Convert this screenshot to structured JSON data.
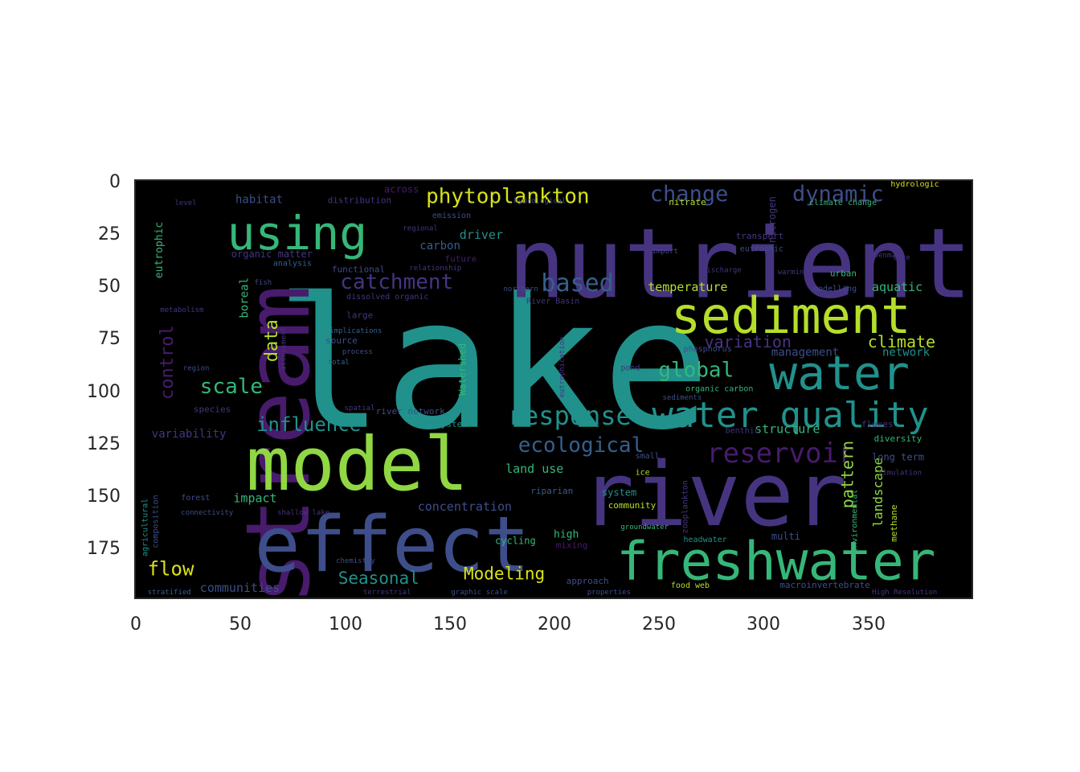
{
  "axes": {
    "x_ticks": [
      "0",
      "50",
      "100",
      "150",
      "200",
      "250",
      "300",
      "350"
    ],
    "y_ticks": [
      "0",
      "25",
      "50",
      "75",
      "100",
      "125",
      "150",
      "175"
    ],
    "xlim": [
      0,
      400
    ],
    "ylim": [
      0,
      200
    ],
    "y_inverted": true,
    "background": "#000000",
    "frame_color": "#262626"
  },
  "palette": {
    "purple": "#481b6d",
    "indigo": "#463480",
    "blue": "#3d4e8a",
    "steel": "#355f8d",
    "teal": "#21918c",
    "green": "#35b779",
    "lime": "#90d743",
    "yellowgreen": "#b5de2b",
    "yellow": "#d8e219"
  },
  "words": [
    {
      "text": "lake",
      "x": 67,
      "y": 118,
      "size": 225,
      "color": "teal",
      "rot": 0
    },
    {
      "text": "stream",
      "x": 83,
      "y": 203,
      "size": 110,
      "color": "purple",
      "rot": -90
    },
    {
      "text": "nutrient",
      "x": 178,
      "y": 56,
      "size": 120,
      "color": "indigo",
      "rot": 0
    },
    {
      "text": "river",
      "x": 213,
      "y": 165,
      "size": 110,
      "color": "indigo",
      "rot": 0
    },
    {
      "text": "effect",
      "x": 57,
      "y": 187,
      "size": 95,
      "color": "blue",
      "rot": 0
    },
    {
      "text": "model",
      "x": 53,
      "y": 148,
      "size": 92,
      "color": "lime",
      "rot": 0
    },
    {
      "text": "using",
      "x": 44,
      "y": 33,
      "size": 58,
      "color": "green",
      "rot": 0
    },
    {
      "text": "sediment",
      "x": 256,
      "y": 73,
      "size": 62,
      "color": "yellowgreen",
      "rot": 0
    },
    {
      "text": "water",
      "x": 303,
      "y": 100,
      "size": 58,
      "color": "teal",
      "rot": 0
    },
    {
      "text": "freshwater",
      "x": 230,
      "y": 191,
      "size": 66,
      "color": "green",
      "rot": 0
    },
    {
      "text": "water quality",
      "x": 247,
      "y": 118,
      "size": 44,
      "color": "teal",
      "rot": 0
    },
    {
      "text": "response",
      "x": 178,
      "y": 117,
      "size": 32,
      "color": "teal",
      "rot": 0
    },
    {
      "text": "reservoir",
      "x": 273,
      "y": 135,
      "size": 34,
      "color": "purple",
      "rot": 0
    },
    {
      "text": "phytoplankton",
      "x": 139,
      "y": 11,
      "size": 26,
      "color": "yellow",
      "rot": 0
    },
    {
      "text": "change",
      "x": 246,
      "y": 10,
      "size": 27,
      "color": "blue",
      "rot": 0
    },
    {
      "text": "dynamic",
      "x": 314,
      "y": 10,
      "size": 27,
      "color": "blue",
      "rot": 0
    },
    {
      "text": "catchment",
      "x": 98,
      "y": 52,
      "size": 26,
      "color": "indigo",
      "rot": 0
    },
    {
      "text": "based",
      "x": 194,
      "y": 53,
      "size": 30,
      "color": "steel",
      "rot": 0
    },
    {
      "text": "ecological",
      "x": 183,
      "y": 130,
      "size": 26,
      "color": "steel",
      "rot": 0
    },
    {
      "text": "global",
      "x": 250,
      "y": 94,
      "size": 26,
      "color": "green",
      "rot": 0
    },
    {
      "text": "influence",
      "x": 58,
      "y": 120,
      "size": 24,
      "color": "teal",
      "rot": 0
    },
    {
      "text": "scale",
      "x": 31,
      "y": 102,
      "size": 26,
      "color": "green",
      "rot": 0
    },
    {
      "text": "data",
      "x": 68,
      "y": 87,
      "size": 22,
      "color": "yellowgreen",
      "rot": -90
    },
    {
      "text": "control",
      "x": 18,
      "y": 105,
      "size": 22,
      "color": "purple",
      "rot": -90
    },
    {
      "text": "variation",
      "x": 272,
      "y": 80,
      "size": 20,
      "color": "indigo",
      "rot": 0
    },
    {
      "text": "climate",
      "x": 350,
      "y": 80,
      "size": 20,
      "color": "yellowgreen",
      "rot": 0
    },
    {
      "text": "temperature",
      "x": 245,
      "y": 53,
      "size": 15,
      "color": "yellowgreen",
      "rot": 0
    },
    {
      "text": "aquatic",
      "x": 352,
      "y": 53,
      "size": 15,
      "color": "green",
      "rot": 0
    },
    {
      "text": "flow",
      "x": 6,
      "y": 189,
      "size": 24,
      "color": "yellow",
      "rot": 0
    },
    {
      "text": "Seasonal",
      "x": 97,
      "y": 193,
      "size": 21,
      "color": "teal",
      "rot": 0
    },
    {
      "text": "Modeling",
      "x": 157,
      "y": 191,
      "size": 21,
      "color": "yellow",
      "rot": 0
    },
    {
      "text": "communities",
      "x": 31,
      "y": 197,
      "size": 15,
      "color": "blue",
      "rot": 0
    },
    {
      "text": "concentration",
      "x": 135,
      "y": 158,
      "size": 15,
      "color": "blue",
      "rot": 0
    },
    {
      "text": "land use",
      "x": 177,
      "y": 140,
      "size": 15,
      "color": "green",
      "rot": 0
    },
    {
      "text": "pattern",
      "x": 343,
      "y": 157,
      "size": 20,
      "color": "lime",
      "rot": -90
    },
    {
      "text": "landscape",
      "x": 357,
      "y": 166,
      "size": 16,
      "color": "lime",
      "rot": -90
    },
    {
      "text": "structure",
      "x": 296,
      "y": 121,
      "size": 15,
      "color": "green",
      "rot": 0
    },
    {
      "text": "network",
      "x": 357,
      "y": 84,
      "size": 14,
      "color": "teal",
      "rot": 0
    },
    {
      "text": "management",
      "x": 304,
      "y": 84,
      "size": 14,
      "color": "blue",
      "rot": 0
    },
    {
      "text": "driver",
      "x": 155,
      "y": 28,
      "size": 15,
      "color": "teal",
      "rot": 0
    },
    {
      "text": "carbon",
      "x": 136,
      "y": 33,
      "size": 14,
      "color": "steel",
      "rot": 0
    },
    {
      "text": "habitat",
      "x": 48,
      "y": 11,
      "size": 14,
      "color": "blue",
      "rot": 0
    },
    {
      "text": "across",
      "x": 119,
      "y": 6,
      "size": 12,
      "color": "purple",
      "rot": 0
    },
    {
      "text": "distribution",
      "x": 92,
      "y": 11,
      "size": 11,
      "color": "indigo",
      "rot": 0
    },
    {
      "text": "emission",
      "x": 142,
      "y": 18,
      "size": 10,
      "color": "blue",
      "rot": 0
    },
    {
      "text": "organic matter",
      "x": 46,
      "y": 37,
      "size": 12,
      "color": "indigo",
      "rot": 0
    },
    {
      "text": "future",
      "x": 148,
      "y": 39,
      "size": 11,
      "color": "purple",
      "rot": 0
    },
    {
      "text": "functional",
      "x": 94,
      "y": 44,
      "size": 11,
      "color": "blue",
      "rot": 0
    },
    {
      "text": "analysis",
      "x": 66,
      "y": 41,
      "size": 10,
      "color": "steel",
      "rot": 0
    },
    {
      "text": "eutrophic",
      "x": 13,
      "y": 47,
      "size": 13,
      "color": "green",
      "rot": -90
    },
    {
      "text": "boreal",
      "x": 54,
      "y": 66,
      "size": 14,
      "color": "green",
      "rot": -90
    },
    {
      "text": "variability",
      "x": 8,
      "y": 123,
      "size": 14,
      "color": "indigo",
      "rot": 0
    },
    {
      "text": "species",
      "x": 28,
      "y": 111,
      "size": 11,
      "color": "indigo",
      "rot": 0
    },
    {
      "text": "impact",
      "x": 47,
      "y": 154,
      "size": 15,
      "color": "green",
      "rot": 0
    },
    {
      "text": "forest",
      "x": 22,
      "y": 153,
      "size": 10,
      "color": "blue",
      "rot": 0
    },
    {
      "text": "Watershed",
      "x": 158,
      "y": 103,
      "size": 12,
      "color": "green",
      "rot": -90
    },
    {
      "text": "river network",
      "x": 115,
      "y": 112,
      "size": 11,
      "color": "blue",
      "rot": 0
    },
    {
      "text": "ecosystem",
      "x": 136,
      "y": 118,
      "size": 11,
      "color": "teal",
      "rot": 0
    },
    {
      "text": "riparian",
      "x": 189,
      "y": 150,
      "size": 11,
      "color": "steel",
      "rot": 0
    },
    {
      "text": "high",
      "x": 200,
      "y": 171,
      "size": 13,
      "color": "green",
      "rot": 0
    },
    {
      "text": "cycling",
      "x": 172,
      "y": 174,
      "size": 12,
      "color": "green",
      "rot": 0
    },
    {
      "text": "mixing",
      "x": 201,
      "y": 176,
      "size": 11,
      "color": "purple",
      "rot": 0
    },
    {
      "text": "system",
      "x": 223,
      "y": 151,
      "size": 12,
      "color": "teal",
      "rot": 0
    },
    {
      "text": "community",
      "x": 226,
      "y": 157,
      "size": 11,
      "color": "yellowgreen",
      "rot": 0
    },
    {
      "text": "long term",
      "x": 352,
      "y": 134,
      "size": 12,
      "color": "blue",
      "rot": 0
    },
    {
      "text": "diversity",
      "x": 353,
      "y": 125,
      "size": 11,
      "color": "green",
      "rot": 0
    },
    {
      "text": "fluxes",
      "x": 347,
      "y": 118,
      "size": 11,
      "color": "indigo",
      "rot": 0
    },
    {
      "text": "benthic",
      "x": 282,
      "y": 121,
      "size": 10,
      "color": "indigo",
      "rot": 0
    },
    {
      "text": "nitrate",
      "x": 255,
      "y": 12,
      "size": 11,
      "color": "yellowgreen",
      "rot": 0
    },
    {
      "text": "nitrogen",
      "x": 306,
      "y": 30,
      "size": 12,
      "color": "indigo",
      "rot": -90
    },
    {
      "text": "climate change",
      "x": 322,
      "y": 12,
      "size": 10,
      "color": "green",
      "rot": 0
    },
    {
      "text": "transport",
      "x": 287,
      "y": 28,
      "size": 11,
      "color": "indigo",
      "rot": 0
    },
    {
      "text": "eutrophic",
      "x": 289,
      "y": 34,
      "size": 10,
      "color": "blue",
      "rot": 0
    },
    {
      "text": "urban",
      "x": 332,
      "y": 46,
      "size": 11,
      "color": "green",
      "rot": 0
    },
    {
      "text": "modelling",
      "x": 324,
      "y": 53,
      "size": 10,
      "color": "blue",
      "rot": 0
    },
    {
      "text": "phosphorus",
      "x": 262,
      "y": 82,
      "size": 10,
      "color": "blue",
      "rot": 0
    },
    {
      "text": "organic carbon",
      "x": 263,
      "y": 101,
      "size": 10,
      "color": "green",
      "rot": 0
    },
    {
      "text": "dissolved organic",
      "x": 101,
      "y": 57,
      "size": 10,
      "color": "indigo",
      "rot": 0
    },
    {
      "text": "River Basin",
      "x": 187,
      "y": 59,
      "size": 10,
      "color": "indigo",
      "rot": 0
    },
    {
      "text": "large",
      "x": 101,
      "y": 66,
      "size": 11,
      "color": "indigo",
      "rot": 0
    },
    {
      "text": "source",
      "x": 91,
      "y": 78,
      "size": 11,
      "color": "blue",
      "rot": 0
    },
    {
      "text": "implications",
      "x": 93,
      "y": 73,
      "size": 9,
      "color": "steel",
      "rot": 0
    },
    {
      "text": "hydrologic",
      "x": 361,
      "y": 3,
      "size": 10,
      "color": "yellow",
      "rot": 0
    },
    {
      "text": "hydrological",
      "x": 181,
      "y": 11,
      "size": 9,
      "color": "blue",
      "rot": 0
    },
    {
      "text": "environmental",
      "x": 345,
      "y": 178,
      "size": 10,
      "color": "green",
      "rot": -90
    },
    {
      "text": "methane",
      "x": 364,
      "y": 173,
      "size": 11,
      "color": "yellowgreen",
      "rot": -90
    },
    {
      "text": "macroinvertebrate",
      "x": 308,
      "y": 195,
      "size": 11,
      "color": "blue",
      "rot": 0
    },
    {
      "text": "food web",
      "x": 256,
      "y": 195,
      "size": 10,
      "color": "yellowgreen",
      "rot": 0
    },
    {
      "text": "multi",
      "x": 304,
      "y": 172,
      "size": 12,
      "color": "blue",
      "rot": 0
    },
    {
      "text": "headwater",
      "x": 262,
      "y": 173,
      "size": 10,
      "color": "teal",
      "rot": 0
    },
    {
      "text": "approach",
      "x": 206,
      "y": 193,
      "size": 11,
      "color": "blue",
      "rot": 0
    },
    {
      "text": "zooplankton",
      "x": 264,
      "y": 169,
      "size": 10,
      "color": "indigo",
      "rot": -90
    },
    {
      "text": "agricultural",
      "x": 6,
      "y": 180,
      "size": 10,
      "color": "teal",
      "rot": -90
    },
    {
      "text": "composition",
      "x": 11,
      "y": 176,
      "size": 10,
      "color": "blue",
      "rot": -90
    },
    {
      "text": "pond",
      "x": 232,
      "y": 91,
      "size": 10,
      "color": "indigo",
      "rot": 0
    },
    {
      "text": "ice",
      "x": 239,
      "y": 141,
      "size": 10,
      "color": "yellowgreen",
      "rot": 0
    },
    {
      "text": "small",
      "x": 239,
      "y": 133,
      "size": 10,
      "color": "blue",
      "rot": 0
    },
    {
      "text": "eutrophication",
      "x": 205,
      "y": 104,
      "size": 9,
      "color": "indigo",
      "rot": -90
    },
    {
      "text": "total",
      "x": 92,
      "y": 88,
      "size": 9,
      "color": "steel",
      "rot": 0
    },
    {
      "text": "shallow lake",
      "x": 68,
      "y": 160,
      "size": 9,
      "color": "indigo",
      "rot": 0
    },
    {
      "text": "chemistry",
      "x": 96,
      "y": 183,
      "size": 9,
      "color": "blue",
      "rot": 0
    },
    {
      "text": "stratified",
      "x": 6,
      "y": 198,
      "size": 9,
      "color": "steel",
      "rot": 0
    },
    {
      "text": "spatial",
      "x": 100,
      "y": 110,
      "size": 9,
      "color": "indigo",
      "rot": 0
    },
    {
      "text": "graphic scale",
      "x": 151,
      "y": 198,
      "size": 9,
      "color": "blue",
      "rot": 0
    },
    {
      "text": "properties",
      "x": 216,
      "y": 198,
      "size": 9,
      "color": "blue",
      "rot": 0
    },
    {
      "text": "High Resolution",
      "x": 352,
      "y": 198,
      "size": 9,
      "color": "indigo",
      "rot": 0
    },
    {
      "text": "terrestrial",
      "x": 109,
      "y": 198,
      "size": 9,
      "color": "indigo",
      "rot": 0
    },
    {
      "text": "groundwater",
      "x": 232,
      "y": 167,
      "size": 9,
      "color": "green",
      "rot": 0
    },
    {
      "text": "simulation",
      "x": 355,
      "y": 141,
      "size": 9,
      "color": "indigo",
      "rot": 0
    },
    {
      "text": "sediments",
      "x": 252,
      "y": 105,
      "size": 9,
      "color": "blue",
      "rot": 0
    },
    {
      "text": "discharge",
      "x": 271,
      "y": 44,
      "size": 9,
      "color": "indigo",
      "rot": 0
    },
    {
      "text": "import",
      "x": 247,
      "y": 35,
      "size": 9,
      "color": "blue",
      "rot": 0
    },
    {
      "text": "size",
      "x": 362,
      "y": 38,
      "size": 9,
      "color": "indigo",
      "rot": 0
    },
    {
      "text": "region",
      "x": 23,
      "y": 91,
      "size": 9,
      "color": "blue",
      "rot": 0
    },
    {
      "text": "metabolism",
      "x": 12,
      "y": 63,
      "size": 9,
      "color": "indigo",
      "rot": 0
    },
    {
      "text": "fish",
      "x": 57,
      "y": 50,
      "size": 9,
      "color": "blue",
      "rot": 0
    },
    {
      "text": "process",
      "x": 99,
      "y": 83,
      "size": 9,
      "color": "blue",
      "rot": 0
    },
    {
      "text": "assessment",
      "x": 72,
      "y": 91,
      "size": 9,
      "color": "indigo",
      "rot": -90
    },
    {
      "text": "level",
      "x": 19,
      "y": 12,
      "size": 9,
      "color": "indigo",
      "rot": 0
    },
    {
      "text": "regional",
      "x": 128,
      "y": 24,
      "size": 9,
      "color": "indigo",
      "rot": 0
    },
    {
      "text": "relationship",
      "x": 131,
      "y": 43,
      "size": 9,
      "color": "indigo",
      "rot": 0
    },
    {
      "text": "northern",
      "x": 176,
      "y": 53,
      "size": 9,
      "color": "blue",
      "rot": 0
    },
    {
      "text": "connectivity",
      "x": 22,
      "y": 160,
      "size": 9,
      "color": "blue",
      "rot": 0
    },
    {
      "text": "warming",
      "x": 307,
      "y": 45,
      "size": 9,
      "color": "indigo",
      "rot": 0
    },
    {
      "text": "Denmark",
      "x": 353,
      "y": 37,
      "size": 9,
      "color": "indigo",
      "rot": 0
    }
  ]
}
